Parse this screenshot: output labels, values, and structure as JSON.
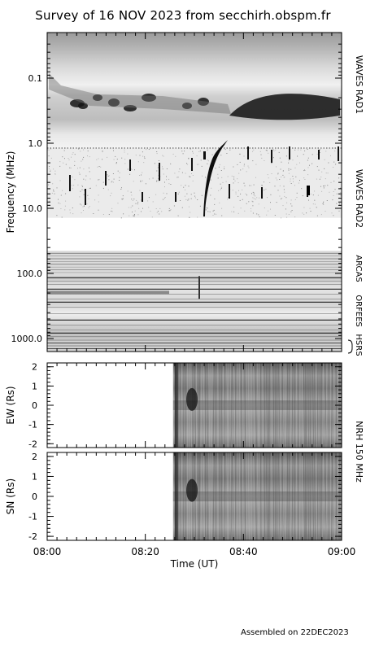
{
  "chart_data": [
    {
      "type": "heatmap",
      "title": "Survey of 16 NOV 2023 from secchirh.obspm.fr",
      "ylabel": "Frequency (MHz)",
      "y_scale": "log",
      "y_inverted": true,
      "ylim": [
        0.02,
        2000
      ],
      "y_ticks": [
        "0.1",
        "1.0",
        "10.0",
        "100.0",
        "1000.0"
      ],
      "instrument_bands": [
        {
          "name": "WAVES RAD1",
          "freq_range": [
            0.02,
            1.2
          ]
        },
        {
          "name": "WAVES RAD2",
          "freq_range": [
            1.2,
            14
          ]
        },
        {
          "name": "ARCAS",
          "freq_range": [
            45,
            110
          ]
        },
        {
          "name": "ORFEES",
          "freq_range": [
            110,
            1000
          ]
        },
        {
          "name": "HSRS",
          "freq_range": [
            1000,
            1500
          ]
        }
      ],
      "burst": {
        "start": "08:31",
        "freq_range_mhz": [
          1.0,
          12
        ]
      }
    },
    {
      "type": "heatmap",
      "ylabel": "EW (Rs)",
      "ylim": [
        -2.2,
        2.2
      ],
      "y_ticks": [
        "-2",
        "-1",
        "0",
        "1",
        "2"
      ],
      "data_start": "08:25"
    },
    {
      "type": "heatmap",
      "ylabel": "SN (Rs)",
      "ylim": [
        -2.2,
        2.2
      ],
      "y_ticks": [
        "-2",
        "-1",
        "0",
        "1",
        "2"
      ],
      "data_start": "08:25"
    }
  ],
  "x_axis": {
    "label": "Time (UT)",
    "ticks": [
      "08:00",
      "08:20",
      "08:40",
      "09:00"
    ]
  },
  "nrh_label": "NRH 150 MHz",
  "footer": "Assembled on 22DEC2023"
}
